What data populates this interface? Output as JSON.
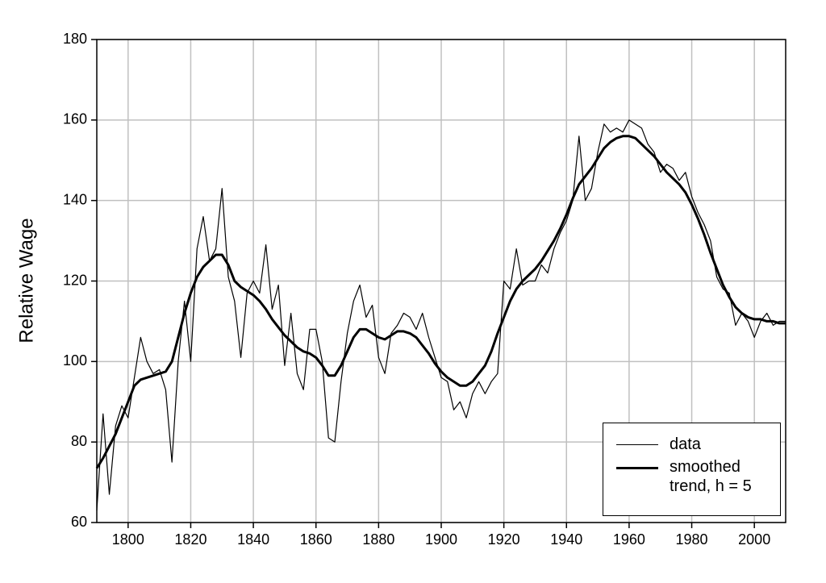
{
  "chart_data": {
    "type": "line",
    "ylabel": "Relative Wage",
    "x": [
      1790,
      1792,
      1794,
      1796,
      1798,
      1800,
      1802,
      1804,
      1806,
      1808,
      1810,
      1812,
      1814,
      1816,
      1818,
      1820,
      1822,
      1824,
      1826,
      1828,
      1830,
      1832,
      1834,
      1836,
      1838,
      1840,
      1842,
      1844,
      1846,
      1848,
      1850,
      1852,
      1854,
      1856,
      1858,
      1860,
      1862,
      1864,
      1866,
      1868,
      1870,
      1872,
      1874,
      1876,
      1878,
      1880,
      1882,
      1884,
      1886,
      1888,
      1890,
      1892,
      1894,
      1896,
      1898,
      1900,
      1902,
      1904,
      1906,
      1908,
      1910,
      1912,
      1914,
      1916,
      1918,
      1920,
      1922,
      1924,
      1926,
      1928,
      1930,
      1932,
      1934,
      1936,
      1938,
      1940,
      1942,
      1944,
      1946,
      1948,
      1950,
      1952,
      1954,
      1956,
      1958,
      1960,
      1962,
      1964,
      1966,
      1968,
      1970,
      1972,
      1974,
      1976,
      1978,
      1980,
      1982,
      1984,
      1986,
      1988,
      1990,
      1992,
      1994,
      1996,
      1998,
      2000,
      2002,
      2004,
      2006,
      2008,
      2010
    ],
    "series": [
      {
        "name": "data",
        "color": "#000000",
        "width": 1.2,
        "values": [
          63,
          87,
          67,
          84,
          89,
          86,
          96,
          106,
          100,
          97,
          98,
          93,
          75,
          100,
          115,
          100,
          128,
          136,
          125,
          128,
          143,
          121,
          115,
          101,
          117,
          120,
          117,
          129,
          113,
          119,
          99,
          112,
          97,
          93,
          108,
          108,
          100,
          81,
          80,
          95,
          107,
          115,
          119,
          111,
          114,
          101,
          97,
          107,
          109,
          112,
          111,
          108,
          112,
          106,
          101,
          96,
          95,
          88,
          90,
          86,
          92,
          95,
          92,
          95,
          97,
          120,
          118,
          128,
          119,
          120,
          120,
          124,
          122,
          128,
          132,
          135,
          140,
          156,
          140,
          143,
          152,
          159,
          157,
          158,
          157,
          160,
          159,
          158,
          154,
          152,
          147,
          149,
          148,
          145,
          147,
          141,
          137,
          134,
          130,
          121,
          118,
          117,
          109,
          112,
          110,
          106,
          110,
          112,
          109,
          110,
          110
        ]
      },
      {
        "name": "smoothed trend, h = 5",
        "color": "#000000",
        "width": 3,
        "values": [
          73.5,
          76,
          79,
          82,
          86,
          90,
          94,
          95.5,
          96,
          96.5,
          97,
          97.5,
          100,
          106,
          112,
          117,
          121,
          123.5,
          125,
          126.5,
          126.5,
          124,
          120,
          118.5,
          117.5,
          116.5,
          115,
          113,
          110.5,
          108.5,
          106.5,
          105,
          103.5,
          102.5,
          102,
          101,
          99,
          96.5,
          96.5,
          99,
          102.5,
          106,
          108,
          108,
          107,
          106,
          105.5,
          106.5,
          107.5,
          107.5,
          107,
          106,
          104,
          102,
          99.5,
          97.5,
          96,
          95,
          94,
          94,
          95,
          97,
          99,
          102.5,
          107,
          111,
          115,
          118,
          120,
          121.5,
          123,
          125,
          127.5,
          130,
          133,
          136.5,
          140.5,
          144,
          146,
          148,
          150.5,
          153,
          154.5,
          155.5,
          156,
          156,
          155.5,
          154,
          152.5,
          151,
          149,
          147,
          145.5,
          144,
          142,
          139,
          135.5,
          131.5,
          127,
          123,
          119,
          116,
          113.5,
          112,
          111,
          110.5,
          110.5,
          110,
          110,
          109.5,
          109.5
        ]
      }
    ],
    "xlim": [
      1790,
      2010
    ],
    "xticks": [
      1800,
      1820,
      1840,
      1860,
      1880,
      1900,
      1920,
      1940,
      1960,
      1980,
      2000
    ],
    "ylim": [
      60,
      180
    ],
    "yticks": [
      60,
      80,
      100,
      120,
      140,
      160,
      180
    ],
    "grid": true,
    "legend": "lower right"
  }
}
